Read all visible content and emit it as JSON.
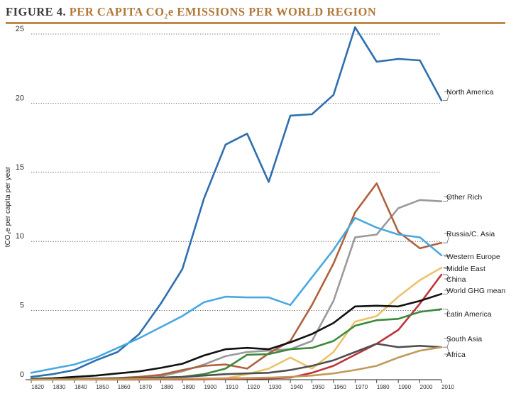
{
  "figure": {
    "label": "FIGURE 4.",
    "title_pre": "PER CAPITA CO",
    "title_sub": "2",
    "title_post": "e EMISSIONS PER WORLD REGION"
  },
  "colors": {
    "title": "#b0793a",
    "rule": "#c08a4a",
    "label": "#3a3a3a"
  },
  "chart_data": {
    "type": "line",
    "ylabel": "tCO₂e per capita per year",
    "xlabel": "",
    "xlim": [
      1820,
      2010
    ],
    "ylim": [
      0,
      25
    ],
    "yticks": [
      0,
      5,
      10,
      15,
      20,
      25
    ],
    "xticks": [
      1820,
      1830,
      1840,
      1850,
      1860,
      1870,
      1880,
      1890,
      1900,
      1910,
      1920,
      1930,
      1940,
      1950,
      1960,
      1970,
      1980,
      1990,
      2000,
      2010
    ],
    "grid": "dotted horizontal",
    "legend": "labels at right end of lines",
    "series": [
      {
        "name": "North America",
        "color": "#2e6fb0",
        "x": [
          1820,
          1830,
          1840,
          1850,
          1860,
          1870,
          1880,
          1890,
          1900,
          1910,
          1920,
          1930,
          1940,
          1950,
          1960,
          1970,
          1980,
          1990,
          2000,
          2010
        ],
        "y": [
          0.2,
          0.4,
          0.7,
          1.4,
          2.0,
          3.3,
          5.5,
          8.0,
          13.1,
          17.0,
          17.8,
          14.3,
          19.1,
          19.2,
          20.6,
          25.5,
          23.0,
          23.2,
          23.1,
          20.2
        ]
      },
      {
        "name": "Other Rich",
        "color": "#9a9a9a",
        "x": [
          1820,
          1830,
          1840,
          1850,
          1860,
          1870,
          1880,
          1890,
          1900,
          1910,
          1920,
          1930,
          1940,
          1950,
          1960,
          1970,
          1980,
          1990,
          2000,
          2010
        ],
        "y": [
          0.02,
          0.03,
          0.05,
          0.08,
          0.1,
          0.15,
          0.25,
          0.6,
          1.1,
          1.7,
          2.0,
          2.1,
          2.2,
          2.8,
          5.7,
          10.3,
          10.5,
          12.4,
          13.0,
          12.9
        ]
      },
      {
        "name": "Russia/C. Asia",
        "color": "#b0603a",
        "x": [
          1820,
          1830,
          1840,
          1850,
          1860,
          1870,
          1880,
          1890,
          1900,
          1910,
          1920,
          1930,
          1940,
          1950,
          1960,
          1970,
          1980,
          1990,
          2000,
          2010
        ],
        "y": [
          0.02,
          0.03,
          0.05,
          0.08,
          0.12,
          0.2,
          0.35,
          0.7,
          1.0,
          1.1,
          0.8,
          1.9,
          2.8,
          5.4,
          8.4,
          12.1,
          14.2,
          10.7,
          9.5,
          9.9
        ]
      },
      {
        "name": "Western Europe",
        "color": "#4aa8e0",
        "x": [
          1820,
          1830,
          1840,
          1850,
          1860,
          1870,
          1880,
          1890,
          1900,
          1910,
          1920,
          1930,
          1940,
          1950,
          1960,
          1970,
          1980,
          1990,
          2000,
          2010
        ],
        "y": [
          0.5,
          0.8,
          1.1,
          1.6,
          2.3,
          3.0,
          3.8,
          4.6,
          5.6,
          6.0,
          5.95,
          5.95,
          5.4,
          7.4,
          9.4,
          11.7,
          11.0,
          10.5,
          10.3,
          9.0
        ]
      },
      {
        "name": "Middle East",
        "color": "#ecc36a",
        "x": [
          1820,
          1830,
          1840,
          1850,
          1860,
          1870,
          1880,
          1890,
          1900,
          1910,
          1920,
          1930,
          1940,
          1950,
          1960,
          1970,
          1980,
          1990,
          2000,
          2010
        ],
        "y": [
          0.01,
          0.01,
          0.01,
          0.01,
          0.01,
          0.01,
          0.02,
          0.02,
          0.03,
          0.1,
          0.4,
          0.8,
          1.6,
          0.8,
          2.0,
          4.2,
          4.6,
          6.0,
          7.2,
          8.1
        ]
      },
      {
        "name": "China",
        "color": "#c0333a",
        "x": [
          1820,
          1830,
          1840,
          1850,
          1860,
          1870,
          1880,
          1890,
          1900,
          1910,
          1920,
          1930,
          1940,
          1950,
          1960,
          1970,
          1980,
          1990,
          2000,
          2010
        ],
        "y": [
          0.01,
          0.01,
          0.01,
          0.01,
          0.01,
          0.01,
          0.02,
          0.02,
          0.03,
          0.05,
          0.08,
          0.1,
          0.15,
          0.5,
          1.0,
          1.8,
          2.6,
          3.6,
          5.5,
          7.6
        ]
      },
      {
        "name": "World  GHG mean",
        "color": "#111111",
        "x": [
          1820,
          1830,
          1840,
          1850,
          1860,
          1870,
          1880,
          1890,
          1900,
          1910,
          1920,
          1930,
          1940,
          1950,
          1960,
          1970,
          1980,
          1990,
          2000,
          2010
        ],
        "y": [
          0.05,
          0.1,
          0.2,
          0.3,
          0.45,
          0.6,
          0.85,
          1.15,
          1.75,
          2.2,
          2.3,
          2.2,
          2.7,
          3.3,
          4.1,
          5.3,
          5.35,
          5.3,
          5.7,
          6.2
        ]
      },
      {
        "name": "Latin America",
        "color": "#3a8a3a",
        "x": [
          1820,
          1830,
          1840,
          1850,
          1860,
          1870,
          1880,
          1890,
          1900,
          1910,
          1920,
          1930,
          1940,
          1950,
          1960,
          1970,
          1980,
          1990,
          2000,
          2010
        ],
        "y": [
          0.01,
          0.02,
          0.03,
          0.05,
          0.08,
          0.1,
          0.15,
          0.2,
          0.4,
          0.8,
          1.8,
          1.85,
          2.2,
          2.3,
          2.8,
          3.9,
          4.3,
          4.4,
          4.9,
          5.1
        ]
      },
      {
        "name": "South Asia",
        "color": "#505050",
        "x": [
          1820,
          1830,
          1840,
          1850,
          1860,
          1870,
          1880,
          1890,
          1900,
          1910,
          1920,
          1930,
          1940,
          1950,
          1960,
          1970,
          1980,
          1990,
          2000,
          2010
        ],
        "y": [
          0.01,
          0.02,
          0.03,
          0.05,
          0.08,
          0.1,
          0.15,
          0.2,
          0.3,
          0.4,
          0.45,
          0.5,
          0.7,
          1.0,
          1.4,
          2.0,
          2.6,
          2.35,
          2.45,
          2.35
        ]
      },
      {
        "name": "Africa",
        "color": "#c09a5a",
        "x": [
          1820,
          1830,
          1840,
          1850,
          1860,
          1870,
          1880,
          1890,
          1900,
          1910,
          1920,
          1930,
          1940,
          1950,
          1960,
          1970,
          1980,
          1990,
          2000,
          2010
        ],
        "y": [
          0.01,
          0.01,
          0.02,
          0.02,
          0.03,
          0.04,
          0.05,
          0.07,
          0.08,
          0.1,
          0.12,
          0.15,
          0.2,
          0.3,
          0.45,
          0.7,
          1.0,
          1.6,
          2.1,
          2.35
        ]
      }
    ]
  }
}
